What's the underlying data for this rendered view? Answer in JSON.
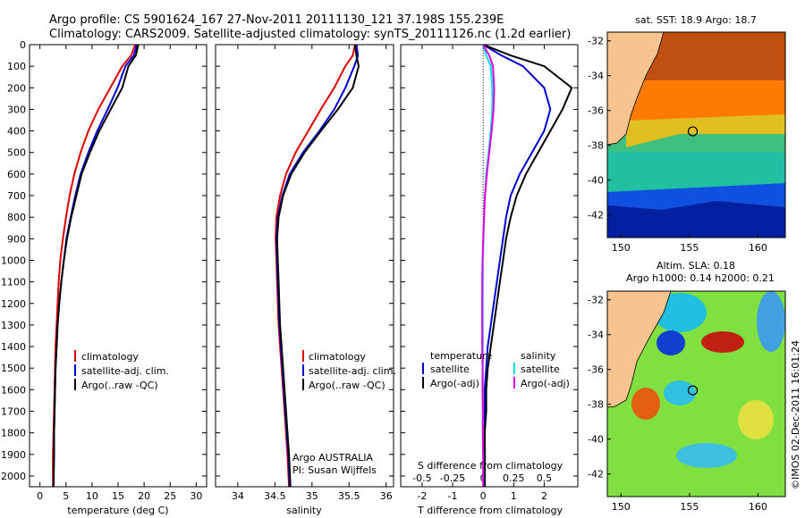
{
  "header": {
    "line1": "Argo profile: CS 5901624_167 27-Nov-2011 20111130_121 37.198S 155.239E",
    "line2": "Climatology: CARS2009. Satellite-adjusted climatology: synTS_20111126.nc (1.2d earlier)"
  },
  "footer_text": "©IMOS 02-Dec-2011 16:01:24",
  "colors": {
    "red": "#e00000",
    "blue": "#0000d8",
    "black": "#000000",
    "cyan": "#00e0e0",
    "magenta": "#e000e0",
    "land": "#f7c48f"
  },
  "chart_data": [
    {
      "type": "line",
      "name": "temperature-profile",
      "xlabel": "temperature (deg C)",
      "ylabel": "",
      "xlim": [
        -2,
        32
      ],
      "ylim": [
        2050,
        0
      ],
      "xticks": [
        0,
        5,
        10,
        15,
        20,
        25,
        30
      ],
      "yticks": [
        0,
        100,
        200,
        300,
        400,
        500,
        600,
        700,
        800,
        900,
        1000,
        1100,
        1200,
        1300,
        1400,
        1500,
        1600,
        1700,
        1800,
        1900,
        2000
      ],
      "legend": [
        "climatology",
        "satellite-adj. clim.",
        "Argo(..raw -QC)"
      ],
      "legend_location": "lower-center",
      "series": [
        {
          "name": "climatology",
          "color": "#e00000",
          "x": [
            18.3,
            17.5,
            15.8,
            13.5,
            11.2,
            9.3,
            7.8,
            6.6,
            5.7,
            5.0,
            4.4,
            3.9,
            3.6,
            3.4,
            3.2,
            3.0,
            2.9,
            2.8,
            2.7,
            2.6,
            2.5,
            2.5
          ],
          "y": [
            0,
            50,
            100,
            200,
            300,
            400,
            500,
            600,
            700,
            800,
            900,
            1000,
            1100,
            1200,
            1300,
            1400,
            1500,
            1600,
            1700,
            1800,
            1900,
            2050
          ]
        },
        {
          "name": "satellite-adj. clim.",
          "color": "#0000d8",
          "x": [
            18.6,
            18.0,
            16.4,
            14.9,
            13.0,
            11.0,
            9.3,
            7.8,
            6.8,
            5.9,
            5.1,
            4.6,
            4.1,
            3.7,
            3.4,
            3.2,
            3.0,
            2.9,
            2.8,
            2.7,
            2.7,
            2.6
          ],
          "y": [
            0,
            50,
            100,
            200,
            300,
            400,
            500,
            600,
            700,
            800,
            900,
            1000,
            1100,
            1200,
            1300,
            1400,
            1500,
            1600,
            1700,
            1800,
            1900,
            2050
          ]
        },
        {
          "name": "Argo(..raw -QC)",
          "color": "#000000",
          "x": [
            18.9,
            18.4,
            17.0,
            15.8,
            13.6,
            11.4,
            9.6,
            8.0,
            7.0,
            6.0,
            5.2,
            4.6,
            4.1,
            3.7,
            3.4,
            3.2,
            3.0,
            2.9,
            2.8,
            2.7,
            2.7,
            2.6
          ],
          "y": [
            0,
            50,
            100,
            200,
            300,
            400,
            500,
            600,
            700,
            800,
            900,
            1000,
            1100,
            1200,
            1300,
            1400,
            1500,
            1600,
            1700,
            1800,
            1900,
            2050
          ]
        }
      ]
    },
    {
      "type": "line",
      "name": "salinity-profile",
      "xlabel": "salinity",
      "xlim": [
        33.7,
        36.1
      ],
      "ylim": [
        2050,
        0
      ],
      "xticks": [
        34,
        34.5,
        35,
        35.5,
        36
      ],
      "legend": [
        "climatology",
        "satellite-adj. clim.",
        "Argo(..raw -QC)"
      ],
      "legend_location": "lower-right",
      "annotation": [
        "Argo AUSTRALIA",
        "PI: Susan Wijffels"
      ],
      "series": [
        {
          "name": "climatology",
          "color": "#e00000",
          "x": [
            35.58,
            35.55,
            35.45,
            35.3,
            35.12,
            34.95,
            34.78,
            34.65,
            34.57,
            34.52,
            34.51,
            34.52,
            34.53,
            34.54,
            34.55,
            34.57,
            34.59,
            34.61,
            34.63,
            34.65,
            34.67,
            34.69
          ],
          "y": [
            0,
            50,
            100,
            200,
            300,
            400,
            500,
            600,
            700,
            800,
            900,
            1000,
            1100,
            1200,
            1300,
            1400,
            1500,
            1600,
            1700,
            1800,
            1900,
            2050
          ]
        },
        {
          "name": "satellite-adj. clim.",
          "color": "#0000d8",
          "x": [
            35.6,
            35.62,
            35.57,
            35.45,
            35.3,
            35.1,
            34.88,
            34.7,
            34.6,
            34.54,
            34.52,
            34.53,
            34.54,
            34.55,
            34.56,
            34.58,
            34.6,
            34.62,
            34.64,
            34.66,
            34.68,
            34.7
          ],
          "y": [
            0,
            50,
            100,
            200,
            300,
            400,
            500,
            600,
            700,
            800,
            900,
            1000,
            1100,
            1200,
            1300,
            1400,
            1500,
            1600,
            1700,
            1800,
            1900,
            2050
          ]
        },
        {
          "name": "Argo(..raw -QC)",
          "color": "#000000",
          "x": [
            35.58,
            35.6,
            35.63,
            35.55,
            35.35,
            35.12,
            34.9,
            34.72,
            34.61,
            34.55,
            34.53,
            34.54,
            34.55,
            34.56,
            34.57,
            34.59,
            34.61,
            34.63,
            34.65,
            34.67,
            34.69,
            34.71
          ],
          "y": [
            0,
            50,
            100,
            200,
            300,
            400,
            500,
            600,
            700,
            800,
            900,
            1000,
            1100,
            1200,
            1300,
            1400,
            1500,
            1600,
            1700,
            1800,
            1900,
            2050
          ]
        }
      ]
    },
    {
      "type": "line",
      "name": "difference-profile",
      "xlabel": "T difference from climatology",
      "xlabel_top": "S difference from climatology",
      "xlim": [
        -2.7,
        3.1
      ],
      "ylim": [
        2050,
        0
      ],
      "xticks": [
        -2,
        -1,
        0,
        1,
        2
      ],
      "xticks_top": [
        -0.5,
        -0.25,
        0,
        0.25,
        0.5
      ],
      "legend_temperature_title": "temperature",
      "legend_salinity_title": "salinity",
      "legend_temperature": [
        "satellite",
        "Argo(-adj)"
      ],
      "legend_salinity": [
        "satellite",
        "Argo(-adj)"
      ],
      "series": [
        {
          "name": "T satellite",
          "color": "#0000d8",
          "x": [
            0,
            0.6,
            1.3,
            2.0,
            2.2,
            2.0,
            1.6,
            1.2,
            0.9,
            0.75,
            0.65,
            0.55,
            0.45,
            0.35,
            0.25,
            0.15,
            0.1,
            0.05,
            0.05,
            0.05,
            0.05,
            0.05
          ],
          "y": [
            0,
            50,
            100,
            200,
            300,
            400,
            500,
            600,
            700,
            800,
            900,
            1000,
            1100,
            1200,
            1300,
            1400,
            1500,
            1600,
            1700,
            1800,
            1900,
            2050
          ]
        },
        {
          "name": "T Argo(-adj)",
          "color": "#000000",
          "x": [
            0,
            0.9,
            2.0,
            2.9,
            2.6,
            2.2,
            1.8,
            1.4,
            1.1,
            0.9,
            0.75,
            0.65,
            0.55,
            0.45,
            0.35,
            0.25,
            0.15,
            0.1,
            0.1,
            0.05,
            0.05,
            0.05
          ],
          "y": [
            0,
            50,
            100,
            200,
            300,
            400,
            500,
            600,
            700,
            800,
            900,
            1000,
            1100,
            1200,
            1300,
            1400,
            1500,
            1600,
            1700,
            1800,
            1900,
            2050
          ]
        },
        {
          "name": "S satellite",
          "color": "#00e0e0",
          "x": [
            0,
            0.1,
            0.25,
            0.3,
            0.3,
            0.25,
            0.18,
            0.1,
            0.06,
            0.03,
            0.01,
            -0.01,
            -0.01,
            -0.01,
            -0.01,
            -0.01,
            -0.01,
            -0.01,
            -0.01,
            -0.01,
            0,
            0
          ],
          "y": [
            0,
            50,
            100,
            200,
            300,
            400,
            500,
            600,
            700,
            800,
            900,
            1000,
            1100,
            1200,
            1300,
            1400,
            1500,
            1600,
            1700,
            1800,
            1900,
            2050
          ]
        },
        {
          "name": "S Argo(-adj)",
          "color": "#e000e0",
          "x": [
            0,
            0.2,
            0.32,
            0.36,
            0.34,
            0.28,
            0.2,
            0.12,
            0.06,
            0.03,
            0.0,
            -0.02,
            -0.03,
            -0.03,
            -0.03,
            -0.03,
            -0.02,
            -0.02,
            -0.01,
            -0.01,
            0,
            0
          ],
          "y": [
            0,
            50,
            100,
            200,
            300,
            400,
            500,
            600,
            700,
            800,
            900,
            1000,
            1100,
            1200,
            1300,
            1400,
            1500,
            1600,
            1700,
            1800,
            1900,
            2050
          ]
        }
      ]
    },
    {
      "type": "heatmap",
      "name": "sst-map",
      "title": "sat. SST: 18.9  Argo: 18.7",
      "xlim": [
        149,
        162
      ],
      "ylim": [
        -43.3,
        -31.5
      ],
      "xticks": [
        150,
        155,
        160
      ],
      "yticks": [
        -32,
        -34,
        -36,
        -38,
        -40,
        -42
      ],
      "argo_position": {
        "lon": 155.239,
        "lat": -37.198
      }
    },
    {
      "type": "heatmap",
      "name": "sla-map",
      "title_line1": "Altim. SLA: 0.18",
      "title_line2": "Argo h1000: 0.14  h2000: 0.21",
      "xlim": [
        149,
        162
      ],
      "ylim": [
        -43.3,
        -31.5
      ],
      "xticks": [
        150,
        155,
        160
      ],
      "yticks": [
        -32,
        -34,
        -36,
        -38,
        -40,
        -42
      ],
      "argo_position": {
        "lon": 155.239,
        "lat": -37.198
      }
    }
  ]
}
